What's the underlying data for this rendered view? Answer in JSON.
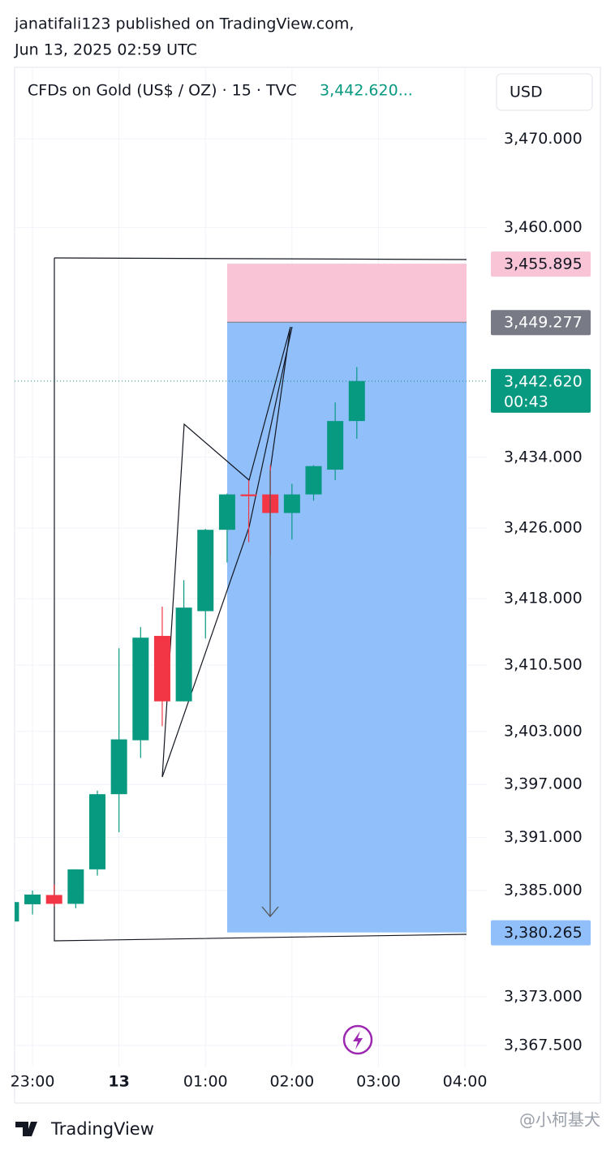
{
  "header": {
    "line1": "janatifali123 published on TradingView.com,",
    "line2": "Jun 13, 2025 02:59 UTC"
  },
  "footer": {
    "brand": "TradingView",
    "watermark": "@小柯基犬"
  },
  "chart_data": {
    "type": "candlestick",
    "symbol": "CFDs on Gold (US$ / OZ) · 15 · TVC",
    "last_price_legend": "3,442.620...",
    "currency": "USD",
    "categories": [
      null,
      "23:00",
      null,
      null,
      null,
      "13",
      null,
      null,
      null,
      "01:00",
      null,
      null,
      null,
      "02:00",
      null,
      null,
      null,
      "03:00",
      null,
      null,
      null,
      "04:00"
    ],
    "open": [
      3381.5,
      3383.45,
      3384.5,
      3383.5,
      3387.4,
      3395.9,
      3402.0,
      3413.8,
      3406.4,
      3416.6,
      3425.8,
      3429.8,
      3429.8,
      3427.7,
      3429.8,
      3432.6,
      3438.1,
      null,
      null,
      null,
      null,
      null
    ],
    "high": [
      3383.7,
      3385.0,
      3385.7,
      3387.4,
      3396.3,
      3412.4,
      3414.8,
      3417.1,
      3420.1,
      3425.9,
      3429.9,
      3431.4,
      3433.1,
      3431.0,
      3433.1,
      3440.2,
      3444.2,
      null,
      null,
      null,
      null,
      null
    ],
    "low": [
      3381.5,
      3382.3,
      3383.2,
      3383.0,
      3386.7,
      3391.6,
      3400.0,
      3403.6,
      3406.4,
      3413.5,
      3422.1,
      3424.4,
      3422.9,
      3424.7,
      3429.1,
      3431.4,
      3436.1,
      null,
      null,
      null,
      null,
      null
    ],
    "close": [
      3383.7,
      3384.55,
      3383.5,
      3387.4,
      3395.9,
      3402.1,
      3413.6,
      3406.4,
      3417.0,
      3425.8,
      3429.8,
      3429.6,
      3427.7,
      3429.8,
      3433.0,
      3438.1,
      3442.62,
      null,
      null,
      null,
      null,
      null
    ],
    "up_color": "#089981",
    "down_color": "#f23645",
    "ylim": [
      3365.1,
      3478.1
    ],
    "yticks": [
      {
        "value": 3470,
        "label": "3,470.000"
      },
      {
        "value": 3460,
        "label": "3,460.000"
      },
      {
        "value": 3434,
        "label": "3,434.000"
      },
      {
        "value": 3426,
        "label": "3,426.000"
      },
      {
        "value": 3418,
        "label": "3,418.000"
      },
      {
        "value": 3410.5,
        "label": "3,410.500"
      },
      {
        "value": 3403,
        "label": "3,403.000"
      },
      {
        "value": 3397,
        "label": "3,397.000"
      },
      {
        "value": 3391,
        "label": "3,391.000"
      },
      {
        "value": 3385,
        "label": "3,385.000"
      },
      {
        "value": 3373,
        "label": "3,373.000"
      },
      {
        "value": 3367.5,
        "label": "3,367.500"
      }
    ],
    "grid": true,
    "position": {
      "stop": {
        "value": 3455.895,
        "label": "3,455.895"
      },
      "entry": {
        "value": 3449.277,
        "label": "3,449.277"
      },
      "target": {
        "value": 3380.265,
        "label": "3,380.265"
      },
      "stop_color": "#f8c4d6",
      "target_color": "#90bff9"
    },
    "last_price": {
      "value": 3442.62,
      "label": "3,442.620",
      "countdown": "00:43"
    }
  }
}
